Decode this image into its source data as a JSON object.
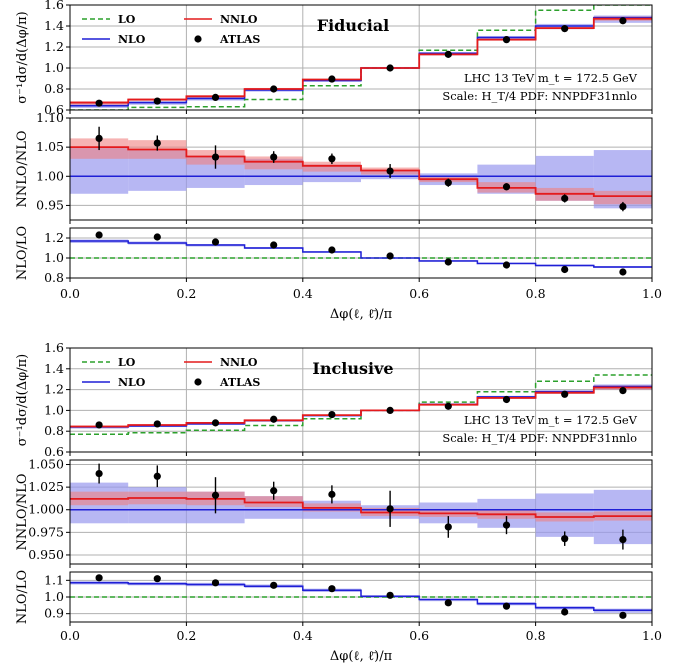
{
  "colors": {
    "LO": "#2ca02c",
    "NLO": "#1f1fd6",
    "NNLO": "#e41a1c",
    "ATLAS": "#000000",
    "NLO_band": "#9999ee",
    "NNLO_band": "#f08080",
    "overlap_band": "#b5557a"
  },
  "chart_data": [
    {
      "type": "line",
      "figure": "top",
      "title": "Fiducial",
      "annotation_lines": [
        "LHC 13 TeV m_t = 172.5 GeV",
        "Scale: H_T/4 PDF: NNPDF31nnlo"
      ],
      "legend": [
        "LO",
        "NNLO",
        "NLO",
        "ATLAS"
      ],
      "xlabel": "Δφ(ℓ, ℓ̄)/π",
      "x_edges": [
        0.0,
        0.1,
        0.2,
        0.3,
        0.4,
        0.5,
        0.6,
        0.7,
        0.8,
        0.9,
        1.0
      ],
      "x_ticks": [
        "0.0",
        "0.2",
        "0.4",
        "0.6",
        "0.8",
        "1.0"
      ],
      "atlas_x": [
        0.05,
        0.15,
        0.25,
        0.35,
        0.45,
        0.55,
        0.65,
        0.75,
        0.85,
        0.95
      ],
      "panels": [
        {
          "ylabel": "σ⁻¹dσ/d(Δφ/π)",
          "ylim": [
            0.6,
            1.6
          ],
          "yticks": [
            "0.6",
            "0.8",
            "1.0",
            "1.2",
            "1.4",
            "1.6"
          ],
          "series": [
            {
              "name": "LO",
              "values": [
                0.6,
                0.625,
                0.63,
                0.7,
                0.83,
                1.0,
                1.17,
                1.36,
                1.55,
                1.6
              ]
            },
            {
              "name": "NLO",
              "values": [
                0.64,
                0.67,
                0.71,
                0.79,
                0.88,
                1.0,
                1.14,
                1.29,
                1.4,
                1.48
              ],
              "band_lo": [
                0.62,
                0.65,
                0.69,
                0.775,
                0.87,
                0.99,
                1.12,
                1.265,
                1.37,
                1.43
              ],
              "band_hi": [
                0.66,
                0.685,
                0.725,
                0.8,
                0.89,
                1.01,
                1.15,
                1.305,
                1.42,
                1.5
              ]
            },
            {
              "name": "NNLO",
              "values": [
                0.67,
                0.7,
                0.73,
                0.8,
                0.89,
                1.0,
                1.13,
                1.27,
                1.38,
                1.47
              ],
              "band_lo": [
                0.65,
                0.685,
                0.72,
                0.79,
                0.885,
                0.995,
                1.12,
                1.26,
                1.37,
                1.45
              ],
              "band_hi": [
                0.685,
                0.71,
                0.74,
                0.81,
                0.895,
                1.005,
                1.14,
                1.28,
                1.39,
                1.49
              ]
            }
          ],
          "atlas_y": [
            0.665,
            0.685,
            0.72,
            0.8,
            0.895,
            1.0,
            1.13,
            1.27,
            1.375,
            1.45
          ],
          "atlas_err": [
            0.01,
            0.01,
            0.01,
            0.01,
            0.01,
            0.01,
            0.01,
            0.01,
            0.01,
            0.015
          ]
        },
        {
          "ylabel": "NNLO/NLO",
          "ylim": [
            0.925,
            1.1
          ],
          "yticks": [
            "0.95",
            "1.00",
            "1.05",
            "1.10"
          ],
          "series": [
            {
              "name": "NLO",
              "values": [
                1.0,
                1.0,
                1.0,
                1.0,
                1.0,
                1.0,
                1.0,
                1.0,
                1.0,
                1.0
              ],
              "band_lo": [
                0.97,
                0.975,
                0.98,
                0.985,
                0.99,
                0.995,
                0.985,
                0.97,
                0.958,
                0.945
              ],
              "band_hi": [
                1.05,
                1.045,
                1.035,
                1.03,
                1.02,
                1.01,
                1.005,
                1.02,
                1.035,
                1.045
              ]
            },
            {
              "name": "NNLO",
              "values": [
                1.05,
                1.046,
                1.034,
                1.025,
                1.018,
                1.01,
                0.995,
                0.98,
                0.97,
                0.966
              ],
              "band_lo": [
                1.03,
                1.03,
                1.02,
                1.012,
                1.008,
                1.003,
                0.99,
                0.972,
                0.958,
                0.952
              ],
              "band_hi": [
                1.065,
                1.062,
                1.045,
                1.034,
                1.025,
                1.015,
                1.0,
                0.99,
                0.98,
                0.975
              ]
            }
          ],
          "atlas_y": [
            1.065,
            1.057,
            1.033,
            1.033,
            1.03,
            1.009,
            0.989,
            0.982,
            0.962,
            0.948
          ],
          "atlas_err": [
            0.02,
            0.013,
            0.02,
            0.01,
            0.009,
            0.012,
            0.007,
            0.006,
            0.007,
            0.008
          ]
        },
        {
          "ylabel": "NLO/LO",
          "ylim": [
            0.8,
            1.3
          ],
          "yticks": [
            "0.8",
            "1.0",
            "1.2"
          ],
          "series": [
            {
              "name": "LO",
              "values": [
                1.0,
                1.0,
                1.0,
                1.0,
                1.0,
                1.0,
                1.0,
                1.0,
                1.0,
                1.0
              ]
            },
            {
              "name": "NLO",
              "values": [
                1.17,
                1.15,
                1.13,
                1.1,
                1.06,
                1.0,
                0.97,
                0.945,
                0.925,
                0.91
              ],
              "band_lo": [
                1.15,
                1.135,
                1.115,
                1.09,
                1.055,
                0.995,
                0.965,
                0.94,
                0.915,
                0.9
              ],
              "band_hi": [
                1.185,
                1.165,
                1.14,
                1.11,
                1.07,
                1.005,
                0.98,
                0.955,
                0.935,
                0.92
              ]
            }
          ],
          "atlas_y": [
            1.23,
            1.21,
            1.16,
            1.13,
            1.08,
            1.02,
            0.96,
            0.93,
            0.885,
            0.86
          ],
          "atlas_err": [
            0.01,
            0.01,
            0.01,
            0.01,
            0.01,
            0.01,
            0.01,
            0.01,
            0.01,
            0.01
          ]
        }
      ]
    },
    {
      "type": "line",
      "figure": "bottom",
      "title": "Inclusive",
      "annotation_lines": [
        "LHC 13 TeV m_t = 172.5 GeV",
        "Scale: H_T/4 PDF: NNPDF31nnlo"
      ],
      "legend": [
        "LO",
        "NNLO",
        "NLO",
        "ATLAS"
      ],
      "xlabel": "Δφ(ℓ, ℓ̄)/π",
      "x_edges": [
        0.0,
        0.1,
        0.2,
        0.3,
        0.4,
        0.5,
        0.6,
        0.7,
        0.8,
        0.9,
        1.0
      ],
      "x_ticks": [
        "0.0",
        "0.2",
        "0.4",
        "0.6",
        "0.8",
        "1.0"
      ],
      "atlas_x": [
        0.05,
        0.15,
        0.25,
        0.35,
        0.45,
        0.55,
        0.65,
        0.75,
        0.85,
        0.95
      ],
      "panels": [
        {
          "ylabel": "σ⁻¹dσ/d(Δφ/π)",
          "ylim": [
            0.6,
            1.6
          ],
          "yticks": [
            "0.6",
            "0.8",
            "1.0",
            "1.2",
            "1.4",
            "1.6"
          ],
          "series": [
            {
              "name": "LO",
              "values": [
                0.77,
                0.785,
                0.81,
                0.855,
                0.92,
                1.0,
                1.08,
                1.18,
                1.28,
                1.34
              ]
            },
            {
              "name": "NLO",
              "values": [
                0.84,
                0.85,
                0.87,
                0.9,
                0.95,
                1.0,
                1.06,
                1.13,
                1.18,
                1.23
              ],
              "band_lo": [
                0.825,
                0.84,
                0.86,
                0.895,
                0.945,
                0.995,
                1.05,
                1.11,
                1.16,
                1.2
              ],
              "band_hi": [
                0.85,
                0.86,
                0.88,
                0.905,
                0.955,
                1.005,
                1.065,
                1.14,
                1.195,
                1.25
              ]
            },
            {
              "name": "NNLO",
              "values": [
                0.845,
                0.86,
                0.88,
                0.905,
                0.955,
                1.0,
                1.055,
                1.12,
                1.17,
                1.22
              ],
              "band_lo": [
                0.835,
                0.855,
                0.875,
                0.9,
                0.95,
                0.998,
                1.05,
                1.11,
                1.16,
                1.2
              ],
              "band_hi": [
                0.855,
                0.865,
                0.885,
                0.91,
                0.96,
                1.002,
                1.06,
                1.13,
                1.18,
                1.24
              ]
            }
          ],
          "atlas_y": [
            0.86,
            0.87,
            0.88,
            0.915,
            0.96,
            1.0,
            1.04,
            1.105,
            1.155,
            1.19
          ],
          "atlas_err": [
            0.01,
            0.01,
            0.01,
            0.01,
            0.01,
            0.01,
            0.01,
            0.01,
            0.01,
            0.015
          ]
        },
        {
          "ylabel": "NNLO/NLO",
          "ylim": [
            0.94,
            1.055
          ],
          "yticks": [
            "0.950",
            "0.975",
            "1.000",
            "1.025",
            "1.050"
          ],
          "series": [
            {
              "name": "NLO",
              "values": [
                1.0,
                1.0,
                1.0,
                1.0,
                1.0,
                1.0,
                1.0,
                1.0,
                1.0,
                1.0
              ],
              "band_lo": [
                0.985,
                0.985,
                0.985,
                0.99,
                0.99,
                0.99,
                0.985,
                0.98,
                0.97,
                0.962
              ],
              "band_hi": [
                1.03,
                1.025,
                1.02,
                1.015,
                1.01,
                1.005,
                1.008,
                1.012,
                1.018,
                1.022
              ]
            },
            {
              "name": "NNLO",
              "values": [
                1.012,
                1.013,
                1.012,
                1.008,
                1.002,
                0.997,
                0.996,
                0.995,
                0.992,
                0.993
              ],
              "band_lo": [
                1.005,
                1.006,
                1.005,
                1.003,
                0.998,
                0.993,
                0.992,
                0.99,
                0.987,
                0.988
              ],
              "band_hi": [
                1.02,
                1.02,
                1.02,
                1.015,
                1.007,
                1.002,
                1.0,
                1.0,
                0.997,
                0.998
              ]
            }
          ],
          "atlas_y": [
            1.04,
            1.037,
            1.016,
            1.021,
            1.017,
            1.001,
            0.981,
            0.983,
            0.968,
            0.967
          ],
          "atlas_err": [
            0.011,
            0.012,
            0.02,
            0.01,
            0.01,
            0.02,
            0.012,
            0.01,
            0.008,
            0.011
          ]
        },
        {
          "ylabel": "NLO/LO",
          "ylim": [
            0.85,
            1.15
          ],
          "yticks": [
            "0.9",
            "1.0",
            "1.1"
          ],
          "series": [
            {
              "name": "LO",
              "values": [
                1.0,
                1.0,
                1.0,
                1.0,
                1.0,
                1.0,
                1.0,
                1.0,
                1.0,
                1.0
              ]
            },
            {
              "name": "NLO",
              "values": [
                1.085,
                1.08,
                1.075,
                1.065,
                1.04,
                1.005,
                0.985,
                0.96,
                0.935,
                0.92
              ],
              "band_lo": [
                1.075,
                1.07,
                1.065,
                1.055,
                1.03,
                0.995,
                0.975,
                0.95,
                0.925,
                0.905
              ],
              "band_hi": [
                1.095,
                1.09,
                1.085,
                1.075,
                1.05,
                1.01,
                0.99,
                0.97,
                0.945,
                0.93
              ]
            }
          ],
          "atlas_y": [
            1.115,
            1.11,
            1.085,
            1.07,
            1.05,
            1.01,
            0.965,
            0.945,
            0.91,
            0.89
          ],
          "atlas_err": [
            0.008,
            0.008,
            0.012,
            0.008,
            0.008,
            0.01,
            0.008,
            0.008,
            0.008,
            0.008
          ]
        }
      ]
    }
  ]
}
